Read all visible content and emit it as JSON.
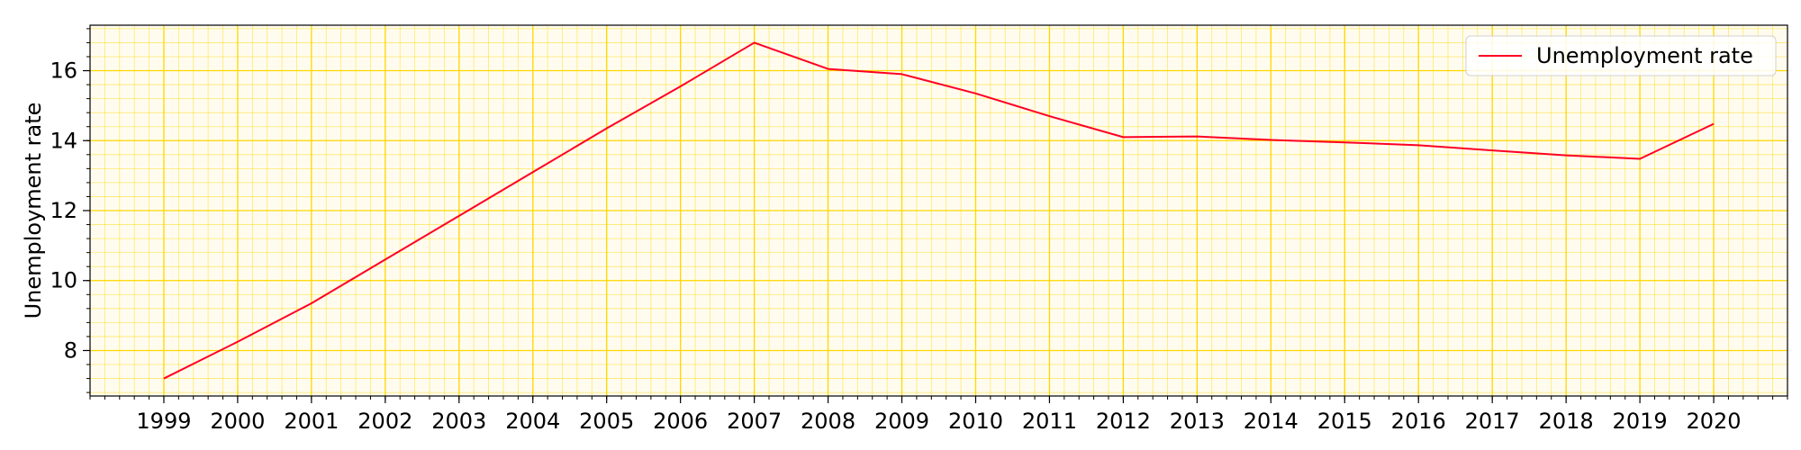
{
  "chart_data": {
    "type": "line",
    "title": "",
    "xlabel": "",
    "ylabel": "Unemployment rate",
    "x": [
      1999,
      2000,
      2001,
      2002,
      2003,
      2004,
      2005,
      2006,
      2007,
      2008,
      2009,
      2010,
      2011,
      2012,
      2013,
      2014,
      2015,
      2016,
      2017,
      2018,
      2019,
      2020
    ],
    "series": [
      {
        "name": "Unemployment rate",
        "color": "#ff0022",
        "values": [
          7.2,
          8.25,
          9.35,
          10.6,
          11.85,
          13.1,
          14.35,
          15.55,
          16.8,
          16.05,
          15.9,
          15.35,
          14.7,
          14.1,
          14.12,
          14.02,
          13.95,
          13.87,
          13.72,
          13.58,
          13.48,
          14.48
        ]
      }
    ],
    "xlim": [
      1998,
      2021
    ],
    "ylim": [
      6.7,
      17.3
    ],
    "yticks": [
      8,
      10,
      12,
      14,
      16
    ],
    "grid": true,
    "minor_grid": true,
    "grid_color": "#ffd700",
    "background": "#fffcef",
    "legend_position": "top-right"
  }
}
